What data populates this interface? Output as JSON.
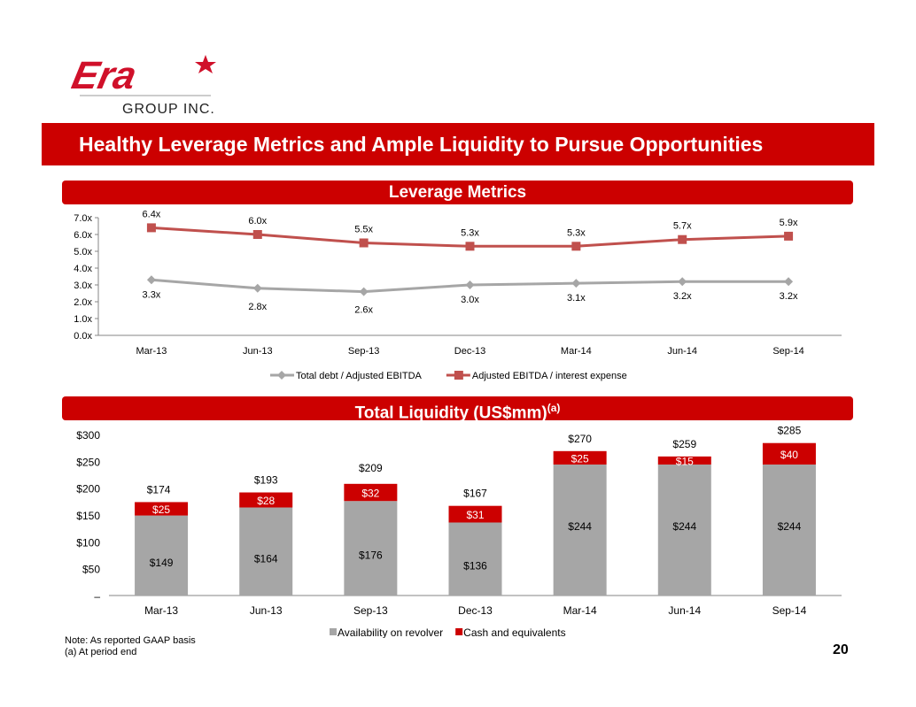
{
  "logo": {
    "brand": "Era",
    "subtitle": "GROUP INC."
  },
  "header": {
    "title": "Healthy Leverage Metrics and Ample Liquidity to Pursue Opportunities"
  },
  "sections": {
    "leverage": "Leverage Metrics",
    "liquidity": "Total Liquidity (US$mm)",
    "liquidity_sup": "(a)"
  },
  "colors": {
    "red": "#cc0000",
    "line_red": "#c0504d",
    "gray": "#a6a6a6"
  },
  "chart_data": [
    {
      "type": "line",
      "categories": [
        "Mar-13",
        "Jun-13",
        "Sep-13",
        "Dec-13",
        "Mar-14",
        "Jun-14",
        "Sep-14"
      ],
      "ylim": [
        0,
        7
      ],
      "yticks": [
        "0.0x",
        "1.0x",
        "2.0x",
        "3.0x",
        "4.0x",
        "5.0x",
        "6.0x",
        "7.0x"
      ],
      "legend": "bottom",
      "series": [
        {
          "name": "Total debt / Adjusted EBITDA",
          "values": [
            3.3,
            2.8,
            2.6,
            3.0,
            3.1,
            3.2,
            3.2
          ],
          "labels": [
            "3.3x",
            "2.8x",
            "2.6x",
            "3.0x",
            "3.1x",
            "3.2x",
            "3.2x"
          ],
          "color": "#a6a6a6",
          "marker": "diamond"
        },
        {
          "name": "Adjusted EBITDA / interest expense",
          "values": [
            6.4,
            6.0,
            5.5,
            5.3,
            5.3,
            5.7,
            5.9
          ],
          "labels": [
            "6.4x",
            "6.0x",
            "5.5x",
            "5.3x",
            "5.3x",
            "5.7x",
            "5.9x"
          ],
          "color": "#c0504d",
          "marker": "square"
        }
      ]
    },
    {
      "type": "bar",
      "stacked": true,
      "categories": [
        "Mar-13",
        "Jun-13",
        "Sep-13",
        "Dec-13",
        "Mar-14",
        "Jun-14",
        "Sep-14"
      ],
      "ylim": [
        0,
        300
      ],
      "yticks": [
        "–",
        "$50",
        "$100",
        "$150",
        "$200",
        "$250",
        "$300"
      ],
      "legend": "bottom",
      "series": [
        {
          "name": "Availability on revolver",
          "values": [
            149,
            164,
            176,
            136,
            244,
            244,
            244
          ],
          "labels": [
            "$149",
            "$164",
            "$176",
            "$136",
            "$244",
            "$244",
            "$244"
          ],
          "color": "#a6a6a6"
        },
        {
          "name": "Cash and equivalents",
          "values": [
            25,
            28,
            32,
            31,
            25,
            15,
            40
          ],
          "labels": [
            "$25",
            "$28",
            "$32",
            "$31",
            "$25",
            "$15",
            "$40"
          ],
          "color": "#cc0000"
        }
      ],
      "totals": [
        "$174",
        "$193",
        "$209",
        "$167",
        "$270",
        "$259",
        "$285"
      ]
    }
  ],
  "notes": {
    "line1": "Note:  As reported GAAP basis",
    "line2": "(a)  At period end"
  },
  "page_number": "20"
}
